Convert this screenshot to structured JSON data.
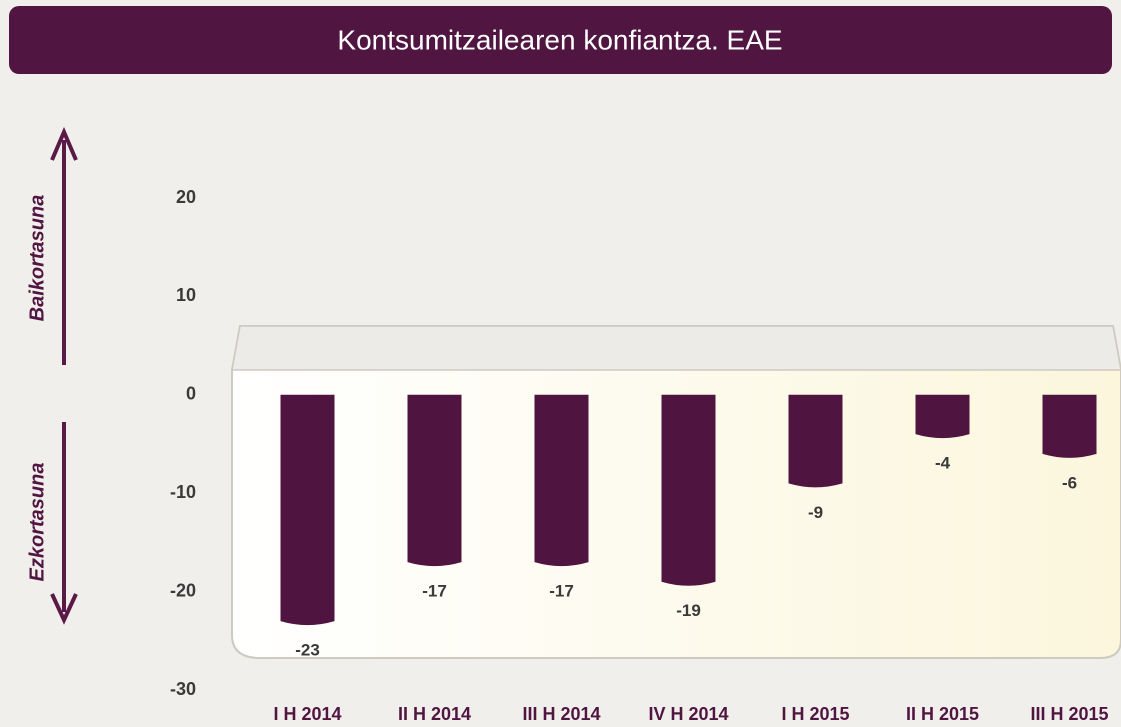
{
  "chart_data": {
    "type": "bar",
    "title": "Kontsumitzailearen konfiantza. EAE",
    "annotations": [
      "Baikortasuna",
      "Ezkortasuna"
    ],
    "categories": [
      "I H 2014",
      "II H 2014",
      "III H 2014",
      "IV H 2014",
      "I H 2015",
      "II H 2015",
      "III H 2015"
    ],
    "values": [
      -23,
      -17,
      -17,
      -19,
      -9,
      -4,
      -6
    ],
    "color": "#4f1540",
    "ylim": [
      -30,
      20
    ],
    "yticks": [
      -30,
      -20,
      -10,
      0,
      10,
      20
    ],
    "grid": false
  }
}
